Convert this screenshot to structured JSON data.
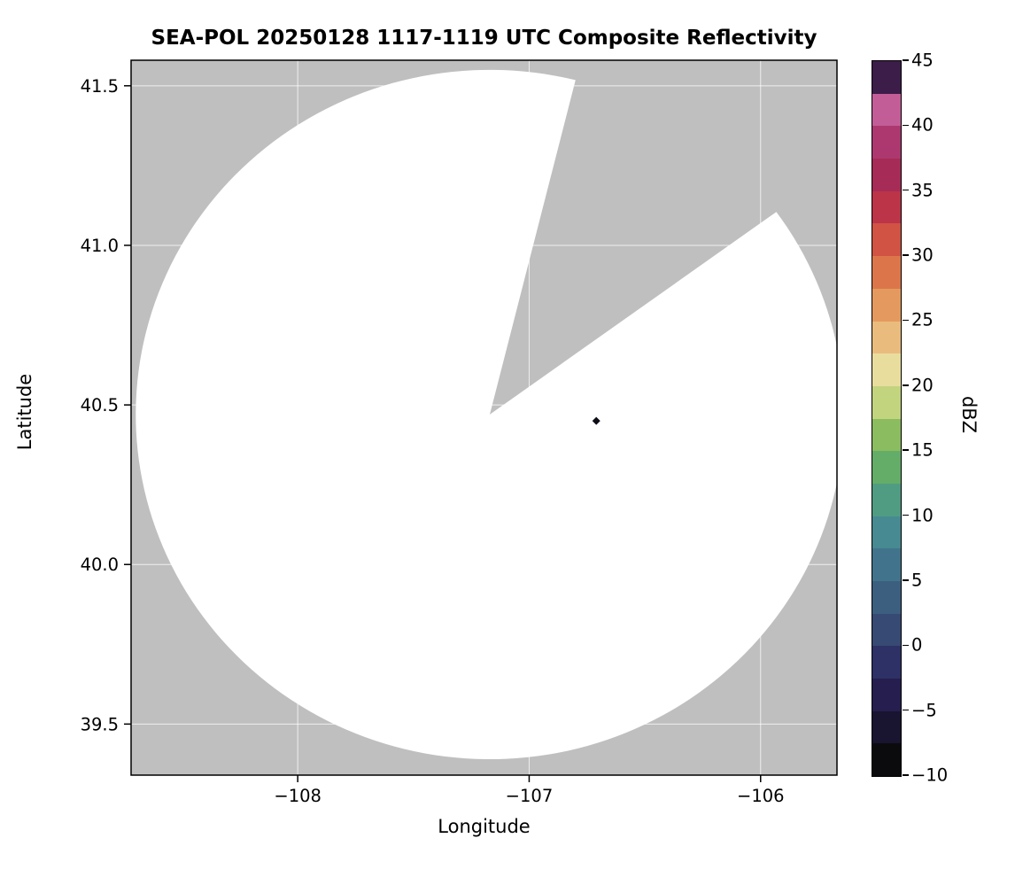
{
  "chart_data": {
    "type": "radar_reflectivity_map",
    "title": "SEA-POL 20250128 1117-1119 UTC Composite Reflectivity",
    "xlabel": "Longitude",
    "ylabel": "Latitude",
    "xlim": [
      -108.72,
      -105.67
    ],
    "ylim": [
      39.34,
      41.58
    ],
    "x_ticks": [
      -108,
      -107,
      -106
    ],
    "x_tick_labels": [
      "−108",
      "−107",
      "−106"
    ],
    "y_ticks": [
      39.5,
      40.0,
      40.5,
      41.0,
      41.5
    ],
    "y_tick_labels": [
      "39.5",
      "40.0",
      "40.5",
      "41.0",
      "41.5"
    ],
    "grid": true,
    "grid_color": "#ffffff",
    "background_color": "#bfbfbf",
    "coverage": {
      "description": "white circular radar coverage area (no significant echo) with a gray missing-data sector",
      "center_lon": -107.17,
      "center_lat": 40.47,
      "radius_lon_deg": 1.53,
      "radius_lat_deg": 1.08,
      "fill": "#ffffff",
      "missing_sector": {
        "azimuth_start_deg": 14,
        "azimuth_end_deg": 54
      }
    },
    "echoes": [
      {
        "lon": -106.71,
        "lat": 40.45,
        "color": "#0d0d15",
        "shape": "diamond"
      }
    ],
    "colorbar": {
      "label": "dBZ",
      "min": -10,
      "max": 45,
      "tick_values": [
        45,
        40,
        35,
        30,
        25,
        20,
        15,
        10,
        5,
        0,
        -5,
        -10
      ],
      "tick_labels": [
        "45",
        "40",
        "35",
        "30",
        "25",
        "20",
        "15",
        "10",
        "5",
        "0",
        "−5",
        "−10"
      ],
      "boundaries_dbz": [
        -10,
        -7.5,
        -5,
        -2.5,
        0,
        2.5,
        5,
        7.5,
        10,
        12.5,
        15,
        17.5,
        20,
        22.5,
        25,
        27.5,
        30,
        32.5,
        35,
        37.5,
        40,
        42.5,
        45
      ],
      "segment_colors_low_to_high": [
        "#0b0b0e",
        "#191430",
        "#251e4f",
        "#2e3166",
        "#364a73",
        "#3c5f80",
        "#41748c",
        "#478a92",
        "#509c82",
        "#63ad68",
        "#8bbc5f",
        "#c2d47e",
        "#e9dd9e",
        "#e9bc7d",
        "#e49a5e",
        "#dc764a",
        "#d05343",
        "#bb3448",
        "#a72b57",
        "#ad3870",
        "#c25d97",
        "#3c1d49"
      ]
    }
  }
}
